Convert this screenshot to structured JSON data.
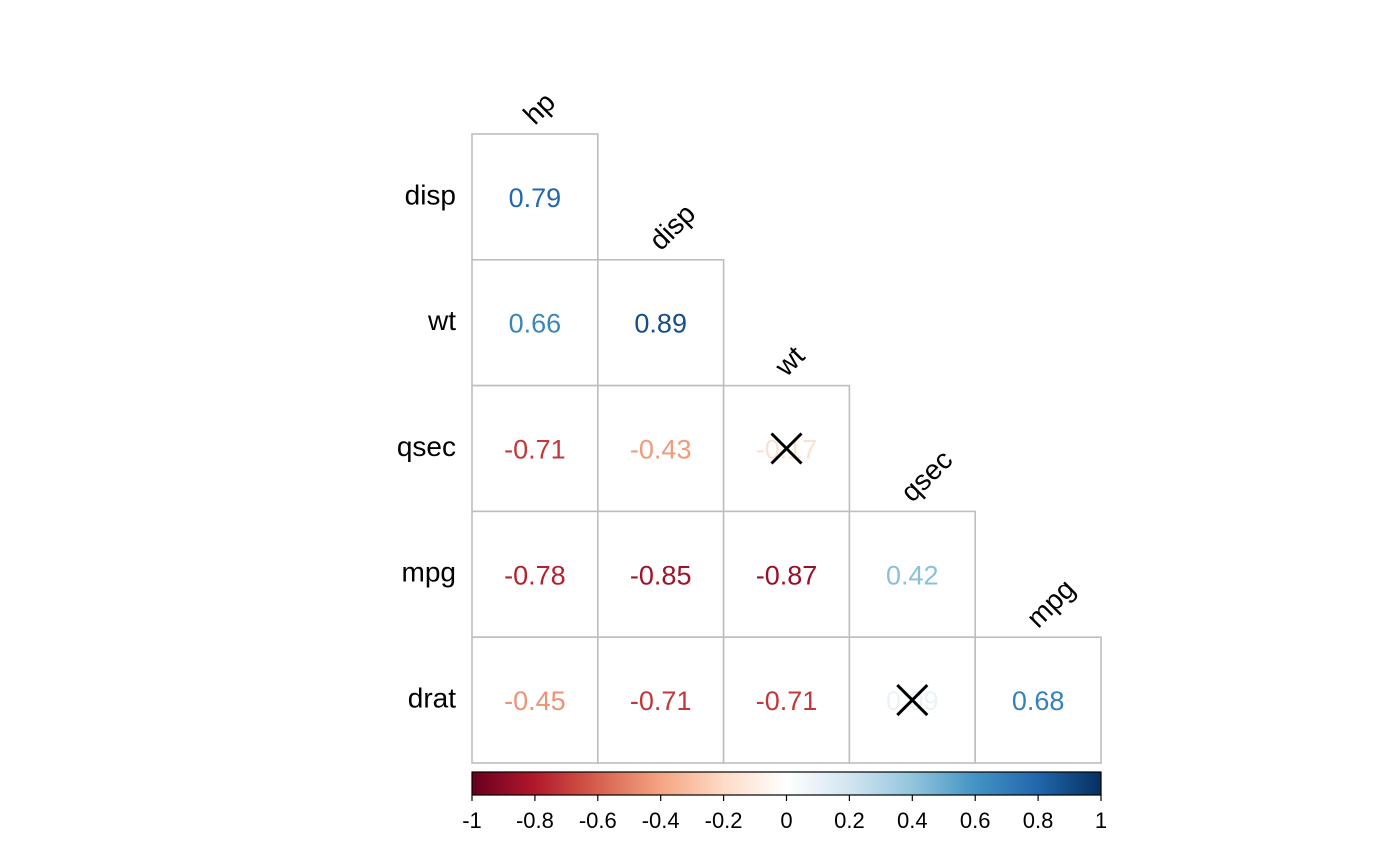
{
  "chart_data": {
    "type": "heatmap",
    "variables": [
      "hp",
      "disp",
      "wt",
      "qsec",
      "mpg",
      "drat"
    ],
    "row_labels": [
      "disp",
      "wt",
      "qsec",
      "mpg",
      "drat"
    ],
    "column_labels": [
      "hp",
      "disp",
      "wt",
      "qsec",
      "mpg"
    ],
    "cells": [
      {
        "row": "disp",
        "col": "hp",
        "value": 0.79,
        "label": "0.79",
        "crossed": false
      },
      {
        "row": "wt",
        "col": "hp",
        "value": 0.66,
        "label": "0.66",
        "crossed": false
      },
      {
        "row": "wt",
        "col": "disp",
        "value": 0.89,
        "label": "0.89",
        "crossed": false
      },
      {
        "row": "qsec",
        "col": "hp",
        "value": -0.71,
        "label": "-0.71",
        "crossed": false
      },
      {
        "row": "qsec",
        "col": "disp",
        "value": -0.43,
        "label": "-0.43",
        "crossed": false
      },
      {
        "row": "qsec",
        "col": "wt",
        "value": -0.17,
        "label": "-0.17",
        "crossed": true
      },
      {
        "row": "mpg",
        "col": "hp",
        "value": -0.78,
        "label": "-0.78",
        "crossed": false
      },
      {
        "row": "mpg",
        "col": "disp",
        "value": -0.85,
        "label": "-0.85",
        "crossed": false
      },
      {
        "row": "mpg",
        "col": "wt",
        "value": -0.87,
        "label": "-0.87",
        "crossed": false
      },
      {
        "row": "mpg",
        "col": "qsec",
        "value": 0.42,
        "label": "0.42",
        "crossed": false
      },
      {
        "row": "drat",
        "col": "hp",
        "value": -0.45,
        "label": "-0.45",
        "crossed": false
      },
      {
        "row": "drat",
        "col": "disp",
        "value": -0.71,
        "label": "-0.71",
        "crossed": false
      },
      {
        "row": "drat",
        "col": "wt",
        "value": -0.71,
        "label": "-0.71",
        "crossed": false
      },
      {
        "row": "drat",
        "col": "qsec",
        "value": 0.09,
        "label": "0.09",
        "crossed": true
      },
      {
        "row": "drat",
        "col": "mpg",
        "value": 0.68,
        "label": "0.68",
        "crossed": false
      }
    ],
    "colorbar": {
      "range": [
        -1,
        1
      ],
      "ticks": [
        "-1",
        "-0.8",
        "-0.6",
        "-0.4",
        "-0.2",
        "0",
        "0.2",
        "0.4",
        "0.6",
        "0.8",
        "1"
      ],
      "tick_values": [
        -1,
        -0.8,
        -0.6,
        -0.4,
        -0.2,
        0,
        0.2,
        0.4,
        0.6,
        0.8,
        1
      ],
      "palette": [
        "#67001F",
        "#B2182B",
        "#D6604D",
        "#F4A582",
        "#FDDBC7",
        "#FFFFFF",
        "#D1E5F0",
        "#92C5DE",
        "#4393C3",
        "#2166AC",
        "#053061"
      ]
    },
    "layout": "lower-triangle",
    "text_labels": true,
    "title": "",
    "xlabel": "",
    "ylabel": "",
    "grid": true,
    "grid_color": "#BEBEBE",
    "legend_placement": "bottom"
  }
}
